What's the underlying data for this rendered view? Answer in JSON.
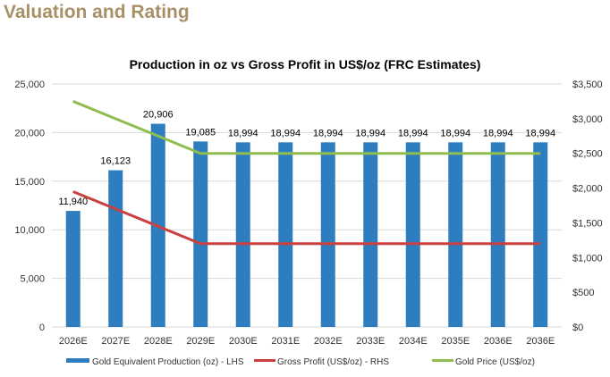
{
  "header": {
    "title": "Valuation and Rating"
  },
  "chart_data": {
    "type": "bar+line",
    "title": "Production in oz vs Gross Profit in US$/oz (FRC Estimates)",
    "categories": [
      "2026E",
      "2027E",
      "2028E",
      "2029E",
      "2030E",
      "2031E",
      "2032E",
      "2033E",
      "2034E",
      "2035E",
      "2036E",
      "2036E"
    ],
    "y_left": {
      "min": 0,
      "max": 25000,
      "ticks": [
        "0",
        "5,000",
        "10,000",
        "15,000",
        "20,000",
        "25,000"
      ]
    },
    "y_right": {
      "min": 0,
      "max": 3500,
      "ticks": [
        "$0",
        "$500",
        "$1,000",
        "$1,500",
        "$2,000",
        "$2,500",
        "$3,000",
        "$3,500"
      ]
    },
    "grid": true,
    "legend_position": "bottom",
    "series": [
      {
        "name": "Gold Equivalent Production (oz) - LHS",
        "type": "bar",
        "axis": "left",
        "color": "#2e7dbf",
        "values": [
          11940,
          16123,
          20906,
          19085,
          18994,
          18994,
          18994,
          18994,
          18994,
          18994,
          18994,
          18994
        ],
        "labels": [
          "11,940",
          "16,123",
          "20,906",
          "19,085",
          "18,994",
          "18,994",
          "18,994",
          "18,994",
          "18,994",
          "18,994",
          "18,994",
          "18,994"
        ]
      },
      {
        "name": "Gross Profit (US$/oz) - RHS",
        "type": "line",
        "axis": "right",
        "color": "#c9413f",
        "values": [
          1950,
          1700,
          1450,
          1200,
          1200,
          1200,
          1200,
          1200,
          1200,
          1200,
          1200,
          1200
        ]
      },
      {
        "name": "Gold Price (US$/oz)",
        "type": "line",
        "axis": "right",
        "color": "#8fbd4e",
        "values": [
          3250,
          3000,
          2750,
          2500,
          2500,
          2500,
          2500,
          2500,
          2500,
          2500,
          2500,
          2500
        ]
      }
    ]
  }
}
